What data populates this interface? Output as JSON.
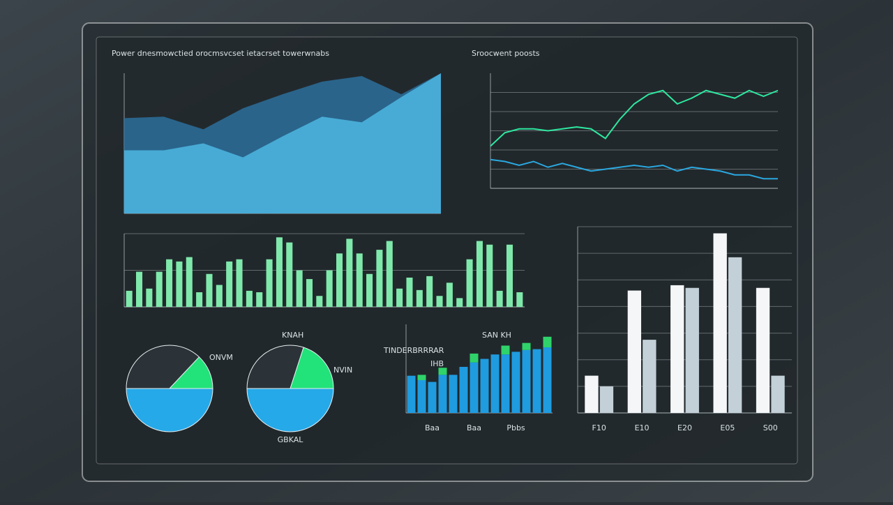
{
  "chart_data": [
    {
      "type": "area",
      "title": "Power dnesmowctied orocmsvcset ietacrset towerwnabs",
      "categories": [
        null,
        null,
        null,
        null,
        null,
        null,
        null,
        null,
        null
      ],
      "series": [
        {
          "color": "#2b6e9c",
          "values": [
            68,
            69,
            60,
            75,
            85,
            94,
            98,
            85,
            100
          ]
        },
        {
          "color": "#4cb7e2",
          "values": [
            45,
            45,
            50,
            40,
            55,
            69,
            65,
            83,
            100
          ]
        }
      ],
      "ylim": [
        0,
        100
      ]
    },
    {
      "type": "line",
      "title": "Sroocwent poosts",
      "categories": [
        null,
        null,
        null,
        null,
        null,
        null,
        null,
        null,
        null,
        null,
        null,
        null,
        null,
        null,
        null,
        null,
        null,
        null,
        null,
        null,
        null
      ],
      "series": [
        {
          "color": "#2ee8a0",
          "values": [
            2.2,
            2.9,
            3.1,
            3.1,
            3.0,
            3.1,
            3.2,
            3.1,
            2.6,
            3.6,
            4.4,
            4.9,
            5.1,
            4.4,
            4.7,
            5.1,
            4.9,
            4.7,
            5.1,
            4.8,
            5.1
          ]
        },
        {
          "color": "#2aa8e0",
          "values": [
            1.5,
            1.4,
            1.2,
            1.4,
            1.1,
            1.3,
            1.1,
            0.9,
            1.0,
            1.1,
            1.2,
            1.1,
            1.2,
            0.9,
            1.1,
            1.0,
            0.9,
            0.7,
            0.7,
            0.5,
            0.5
          ]
        }
      ],
      "ylim": [
        0,
        6
      ],
      "yticks": [
        0,
        1,
        2,
        3,
        4,
        5
      ],
      "grid": true
    },
    {
      "type": "bar",
      "categories": [
        null,
        null,
        null,
        null,
        null,
        null,
        null,
        null,
        null,
        null,
        null,
        null,
        null,
        null,
        null,
        null,
        null,
        null,
        null,
        null,
        null,
        null,
        null,
        null,
        null,
        null,
        null,
        null,
        null,
        null,
        null,
        null,
        null,
        null,
        null,
        null,
        null,
        null,
        null,
        null
      ],
      "series": [
        {
          "color": "#7fe8ab",
          "values": [
            22,
            48,
            25,
            48,
            65,
            62,
            68,
            20,
            45,
            30,
            62,
            65,
            22,
            20,
            65,
            95,
            88,
            50,
            38,
            15,
            50,
            73,
            93,
            73,
            45,
            78,
            90,
            25,
            40,
            23,
            42,
            15,
            33,
            12,
            65,
            90,
            85,
            22,
            85,
            20
          ]
        }
      ],
      "ylim": [
        0,
        100
      ],
      "yticks": [
        0,
        50,
        100
      ],
      "grid": true
    },
    {
      "type": "pie",
      "values": [
        50,
        37,
        13
      ],
      "colors": [
        "#25a9e8",
        "#2b3338",
        "#22e27a"
      ],
      "annotations": [
        "ONVM"
      ]
    },
    {
      "type": "pie",
      "values": [
        50,
        30,
        20
      ],
      "colors": [
        "#25a9e8",
        "#2b3338",
        "#22e27a"
      ],
      "annotations": [
        "KNAH",
        "NVIN",
        "GBKAL"
      ]
    },
    {
      "type": "bar",
      "stacked": true,
      "title": "SAN KH",
      "annotations": [
        "TINDERBRRRAR",
        "IHB"
      ],
      "categories": [
        null,
        null,
        "Baa",
        null,
        null,
        null,
        "Baa",
        null,
        null,
        null,
        "Pbbs",
        null,
        null,
        null
      ],
      "series": [
        {
          "color": "#1f9be0",
          "values": [
            42,
            37,
            35,
            43,
            43,
            52,
            57,
            61,
            66,
            66,
            69,
            71,
            72,
            74
          ]
        },
        {
          "color": "#2fd36a",
          "values": [
            0,
            6,
            0,
            8,
            0,
            0,
            10,
            0,
            0,
            10,
            0,
            8,
            0,
            12
          ]
        }
      ],
      "ylim": [
        0,
        100
      ]
    },
    {
      "type": "bar",
      "categories": [
        "F10",
        "E10",
        "E20",
        "E05",
        "S00"
      ],
      "series": [
        {
          "color": "#f4f6f7",
          "values": [
            28,
            92,
            96,
            135,
            94
          ]
        },
        {
          "color": "#c3d0d8",
          "values": [
            20,
            55,
            94,
            117,
            28
          ]
        }
      ],
      "ylim": [
        0,
        140
      ],
      "yticks": [
        0,
        20,
        40,
        60,
        80,
        100,
        120,
        140
      ],
      "grid": true
    }
  ]
}
